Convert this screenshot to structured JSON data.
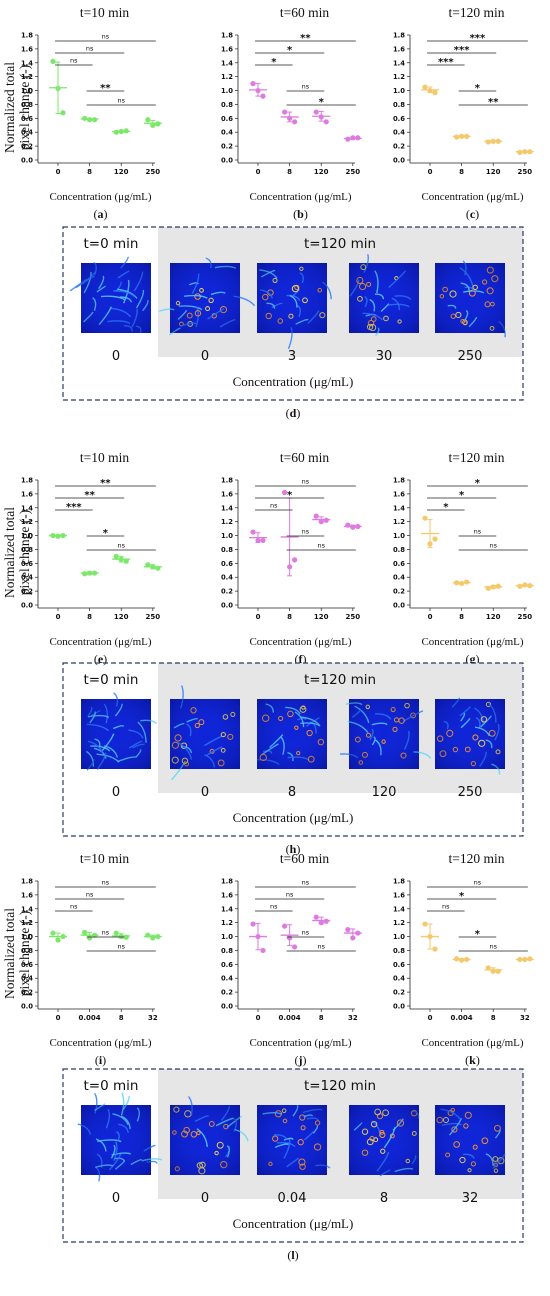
{
  "chart_data": {
    "figure_parts": [
      {
        "type": "scatter",
        "shared_ylabel_lines": [
          "Normalized total",
          "pixel change (-)"
        ],
        "xlabel": "Concentration (μg/mL)",
        "ylim": [
          0,
          1.8
        ],
        "yticks": [
          "0.0",
          "0.2",
          "0.4",
          "0.6",
          "0.8",
          "1.0",
          "1.2",
          "1.4",
          "1.6",
          "1.8"
        ],
        "panels": [
          {
            "label": "a",
            "title": "t=10 min",
            "color": "#7be86a",
            "categories": [
              "0",
              "8",
              "120",
              "250"
            ],
            "points": [
              [
                1.42,
                1.03,
                0.68
              ],
              [
                0.6,
                0.58,
                0.58
              ],
              [
                0.4,
                0.41,
                0.42
              ],
              [
                0.58,
                0.5,
                0.52
              ]
            ],
            "means": [
              1.04,
              0.59,
              0.41,
              0.53
            ],
            "sd": [
              0.37,
              0.01,
              0.01,
              0.04
            ],
            "brackets": [
              {
                "from": 0,
                "to": 3,
                "label": "ns"
              },
              {
                "from": 0,
                "to": 2,
                "label": "ns"
              },
              {
                "from": 0,
                "to": 1,
                "label": "ns"
              },
              {
                "from": 1,
                "to": 2,
                "label": "**"
              },
              {
                "from": 1,
                "to": 3,
                "label": "ns"
              }
            ]
          },
          {
            "label": "b",
            "title": "t=60 min",
            "color": "#dd7be0",
            "categories": [
              "0",
              "8",
              "120",
              "250"
            ],
            "points": [
              [
                1.1,
                1.0,
                0.92
              ],
              [
                0.69,
                0.6,
                0.55
              ],
              [
                0.69,
                0.62,
                0.55
              ],
              [
                0.3,
                0.32,
                0.32
              ]
            ],
            "means": [
              1.01,
              0.62,
              0.63,
              0.31
            ],
            "sd": [
              0.09,
              0.07,
              0.07,
              0.01
            ],
            "brackets": [
              {
                "from": 0,
                "to": 3,
                "label": "**"
              },
              {
                "from": 0,
                "to": 2,
                "label": "*"
              },
              {
                "from": 0,
                "to": 1,
                "label": "*"
              },
              {
                "from": 1,
                "to": 2,
                "label": "ns"
              },
              {
                "from": 1,
                "to": 3,
                "label": "*"
              }
            ]
          },
          {
            "label": "c",
            "title": "t=120 min",
            "color": "#f5c86a",
            "categories": [
              "0",
              "8",
              "120",
              "250"
            ],
            "points": [
              [
                1.05,
                1.0,
                0.97
              ],
              [
                0.33,
                0.34,
                0.34
              ],
              [
                0.26,
                0.27,
                0.27
              ],
              [
                0.11,
                0.12,
                0.12
              ]
            ],
            "means": [
              1.01,
              0.34,
              0.27,
              0.12
            ],
            "sd": [
              0.04,
              0.01,
              0.01,
              0.01
            ],
            "brackets": [
              {
                "from": 0,
                "to": 3,
                "label": "***"
              },
              {
                "from": 0,
                "to": 2,
                "label": "***"
              },
              {
                "from": 0,
                "to": 1,
                "label": "***"
              },
              {
                "from": 1,
                "to": 2,
                "label": "*"
              },
              {
                "from": 1,
                "to": 3,
                "label": "**"
              }
            ]
          }
        ]
      },
      {
        "type": "image_strip",
        "label": "d",
        "left_title": "t=0 min",
        "right_title": "t=120 min",
        "tiles": [
          "0",
          "0",
          "3",
          "30",
          "250"
        ],
        "xlabel": "Concentration (μg/mL)"
      },
      {
        "type": "scatter",
        "shared_ylabel_lines": [
          "Normalized total",
          "pixel change (-)"
        ],
        "xlabel": "Concentration (μg/mL)",
        "ylim": [
          0,
          1.8
        ],
        "yticks": [
          "0.0",
          "0.2",
          "0.4",
          "0.6",
          "0.8",
          "1.0",
          "1.2",
          "1.4",
          "1.6",
          "1.8"
        ],
        "panels": [
          {
            "label": "e",
            "title": "t=10 min",
            "color": "#7be86a",
            "categories": [
              "0",
              "8",
              "120",
              "250"
            ],
            "points": [
              [
                1.0,
                0.99,
                1.0
              ],
              [
                0.45,
                0.46,
                0.46
              ],
              [
                0.7,
                0.66,
                0.63
              ],
              [
                0.58,
                0.55,
                0.53
              ]
            ],
            "means": [
              1.0,
              0.46,
              0.66,
              0.55
            ],
            "sd": [
              0.01,
              0.02,
              0.04,
              0.03
            ],
            "brackets": [
              {
                "from": 0,
                "to": 3,
                "label": "**"
              },
              {
                "from": 0,
                "to": 2,
                "label": "**"
              },
              {
                "from": 0,
                "to": 1,
                "label": "***"
              },
              {
                "from": 1,
                "to": 2,
                "label": "*"
              },
              {
                "from": 1,
                "to": 3,
                "label": "ns"
              }
            ]
          },
          {
            "label": "f",
            "title": "t=60 min",
            "color": "#dd7be0",
            "categories": [
              "0",
              "8",
              "120",
              "250"
            ],
            "points": [
              [
                1.05,
                0.93,
                0.93
              ],
              [
                1.62,
                0.55,
                0.65
              ],
              [
                1.28,
                1.2,
                1.22
              ],
              [
                1.15,
                1.12,
                1.13
              ]
            ],
            "means": [
              0.97,
              0.98,
              1.23,
              1.13
            ],
            "sd": [
              0.07,
              0.56,
              0.04,
              0.02
            ],
            "brackets": [
              {
                "from": 0,
                "to": 3,
                "label": "ns"
              },
              {
                "from": 0,
                "to": 2,
                "label": "*"
              },
              {
                "from": 0,
                "to": 1,
                "label": "ns"
              },
              {
                "from": 1,
                "to": 2,
                "label": "ns"
              },
              {
                "from": 1,
                "to": 3,
                "label": "ns"
              }
            ]
          },
          {
            "label": "g",
            "title": "t=120 min",
            "color": "#f5c86a",
            "categories": [
              "0",
              "8",
              "120",
              "250"
            ],
            "points": [
              [
                1.25,
                0.88,
                0.95
              ],
              [
                0.32,
                0.31,
                0.33
              ],
              [
                0.24,
                0.26,
                0.27
              ],
              [
                0.27,
                0.29,
                0.28
              ]
            ],
            "means": [
              1.03,
              0.32,
              0.26,
              0.28
            ],
            "sd": [
              0.2,
              0.01,
              0.02,
              0.01
            ],
            "brackets": [
              {
                "from": 0,
                "to": 3,
                "label": "*"
              },
              {
                "from": 0,
                "to": 2,
                "label": "*"
              },
              {
                "from": 0,
                "to": 1,
                "label": "*"
              },
              {
                "from": 1,
                "to": 2,
                "label": "ns"
              },
              {
                "from": 1,
                "to": 3,
                "label": "ns"
              }
            ]
          }
        ]
      },
      {
        "type": "image_strip",
        "label": "h",
        "left_title": "t=0 min",
        "right_title": "t=120 min",
        "tiles": [
          "0",
          "0",
          "8",
          "120",
          "250"
        ],
        "xlabel": "Concentration (μg/mL)"
      },
      {
        "type": "scatter",
        "shared_ylabel_lines": [
          "Normalized total",
          "pixel change (-)"
        ],
        "xlabel": "Concentration (μg/mL)",
        "ylim": [
          0,
          1.8
        ],
        "yticks": [
          "0.0",
          "0.2",
          "0.4",
          "0.6",
          "0.8",
          "1.0",
          "1.2",
          "1.4",
          "1.6",
          "1.8"
        ],
        "panels": [
          {
            "label": "i",
            "title": "t=10 min",
            "color": "#7be86a",
            "categories": [
              "0",
              "0.004",
              "8",
              "32"
            ],
            "points": [
              [
                1.05,
                0.95,
                1.0
              ],
              [
                1.06,
                0.98,
                1.02
              ],
              [
                1.05,
                1.0,
                0.99
              ],
              [
                1.02,
                0.98,
                1.0
              ]
            ],
            "means": [
              1.0,
              1.02,
              1.01,
              1.0
            ],
            "sd": [
              0.05,
              0.04,
              0.03,
              0.02
            ],
            "brackets": [
              {
                "from": 0,
                "to": 3,
                "label": "ns"
              },
              {
                "from": 0,
                "to": 2,
                "label": "ns"
              },
              {
                "from": 0,
                "to": 1,
                "label": "ns"
              },
              {
                "from": 1,
                "to": 2,
                "label": "ns"
              },
              {
                "from": 1,
                "to": 3,
                "label": "ns"
              }
            ]
          },
          {
            "label": "j",
            "title": "t=60 min",
            "color": "#dd7be0",
            "categories": [
              "0",
              "0.004",
              "8",
              "32"
            ],
            "points": [
              [
                1.18,
                1.0,
                0.8
              ],
              [
                1.15,
                0.98,
                0.85
              ],
              [
                1.28,
                1.2,
                1.22
              ],
              [
                1.1,
                0.98,
                1.05
              ]
            ],
            "means": [
              1.0,
              1.02,
              1.23,
              1.05
            ],
            "sd": [
              0.19,
              0.15,
              0.05,
              0.06
            ],
            "brackets": [
              {
                "from": 0,
                "to": 3,
                "label": "ns"
              },
              {
                "from": 0,
                "to": 2,
                "label": "ns"
              },
              {
                "from": 0,
                "to": 1,
                "label": "ns"
              },
              {
                "from": 1,
                "to": 2,
                "label": "ns"
              },
              {
                "from": 1,
                "to": 3,
                "label": "ns"
              }
            ]
          },
          {
            "label": "k",
            "title": "t=120 min",
            "color": "#f5c86a",
            "categories": [
              "0",
              "0.004",
              "8",
              "32"
            ],
            "points": [
              [
                1.18,
                1.0,
                0.82
              ],
              [
                0.68,
                0.66,
                0.67
              ],
              [
                0.55,
                0.5,
                0.5
              ],
              [
                0.67,
                0.67,
                0.68
              ]
            ],
            "means": [
              1.0,
              0.67,
              0.52,
              0.67
            ],
            "sd": [
              0.18,
              0.01,
              0.03,
              0.01
            ],
            "brackets": [
              {
                "from": 0,
                "to": 3,
                "label": "ns"
              },
              {
                "from": 0,
                "to": 2,
                "label": "*"
              },
              {
                "from": 0,
                "to": 1,
                "label": "ns"
              },
              {
                "from": 1,
                "to": 2,
                "label": "*"
              },
              {
                "from": 1,
                "to": 3,
                "label": "ns"
              }
            ]
          }
        ]
      },
      {
        "type": "image_strip",
        "label": "l",
        "left_title": "t=0 min",
        "right_title": "t=120 min",
        "tiles": [
          "0",
          "0",
          "0.04",
          "8",
          "32"
        ],
        "xlabel": "Concentration (μg/mL)"
      }
    ]
  }
}
